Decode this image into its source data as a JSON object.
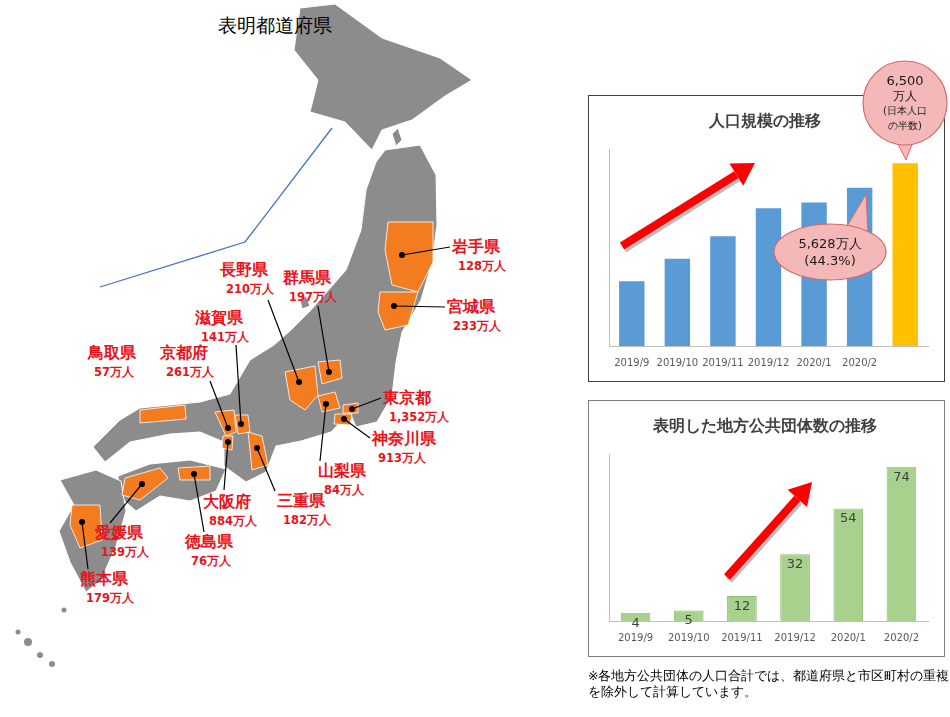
{
  "map": {
    "title": "表明都道府県",
    "prefectures": [
      {
        "name": "岩手県",
        "population": "128万人"
      },
      {
        "name": "宮城県",
        "population": "233万人"
      },
      {
        "name": "群馬県",
        "population": "197万人"
      },
      {
        "name": "長野県",
        "population": "210万人"
      },
      {
        "name": "滋賀県",
        "population": "141万人"
      },
      {
        "name": "京都府",
        "population": "261万人"
      },
      {
        "name": "鳥取県",
        "population": "57万人"
      },
      {
        "name": "東京都",
        "population": "1,352万人"
      },
      {
        "name": "神奈川県",
        "population": "913万人"
      },
      {
        "name": "山梨県",
        "population": "84万人"
      },
      {
        "name": "三重県",
        "population": "182万人"
      },
      {
        "name": "大阪府",
        "population": "884万人"
      },
      {
        "name": "徳島県",
        "population": "76万人"
      },
      {
        "name": "愛媛県",
        "population": "139万人"
      },
      {
        "name": "熊本県",
        "population": "179万人"
      }
    ]
  },
  "chart_data": [
    {
      "type": "bar",
      "title": "人口規模の推移",
      "categories": [
        "2019/9",
        "2019/10",
        "2019/11",
        "2019/12",
        "2020/1",
        "2020/2",
        null
      ],
      "values": [
        2300,
        3100,
        3900,
        4900,
        5100,
        5628,
        6500
      ],
      "colors": [
        "#5b9bd5",
        "#5b9bd5",
        "#5b9bd5",
        "#5b9bd5",
        "#5b9bd5",
        "#5b9bd5",
        "#ffc000"
      ],
      "ylim": [
        0,
        7000
      ],
      "grid": false,
      "tick_labels": "x",
      "annotations": [
        {
          "lines": [
            "5,628万人",
            "(44.3%)"
          ]
        },
        {
          "lines": [
            "6,500",
            "万人",
            "(日本人口",
            "の半数)"
          ]
        }
      ]
    },
    {
      "type": "bar",
      "title": "表明した地方公共団体数の推移",
      "categories": [
        "2019/9",
        "2019/10",
        "2019/11",
        "2019/12",
        "2020/1",
        "2020/2"
      ],
      "values": [
        4,
        5,
        12,
        32,
        54,
        74
      ],
      "color": "#a9d18e",
      "ylim": [
        0,
        80
      ],
      "grid": false,
      "tick_labels": "x",
      "data_labels": true
    }
  ],
  "footnote": "※各地方公共団体の人口合計では、都道府県と市区町村の重複を除外して計算しています。"
}
